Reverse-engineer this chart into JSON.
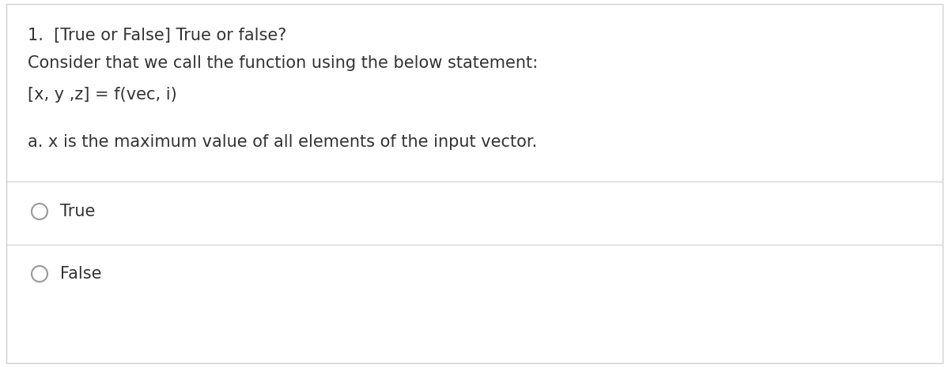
{
  "bg_color": "#ffffff",
  "border_color": "#d0d0d0",
  "text_color": "#333333",
  "line_color": "#d0d0d0",
  "radio_color": "#999999",
  "title": "1.  [True or False] True or false?",
  "line1": "Consider that we call the function using the below statement:",
  "line2": "[x, y ,z] = f(vec, i)",
  "line3": "a. x is the maximum value of all elements of the input vector.",
  "option1": "True",
  "option2": "False",
  "title_fontsize": 15,
  "body_fontsize": 15,
  "radio_linewidth": 1.5
}
